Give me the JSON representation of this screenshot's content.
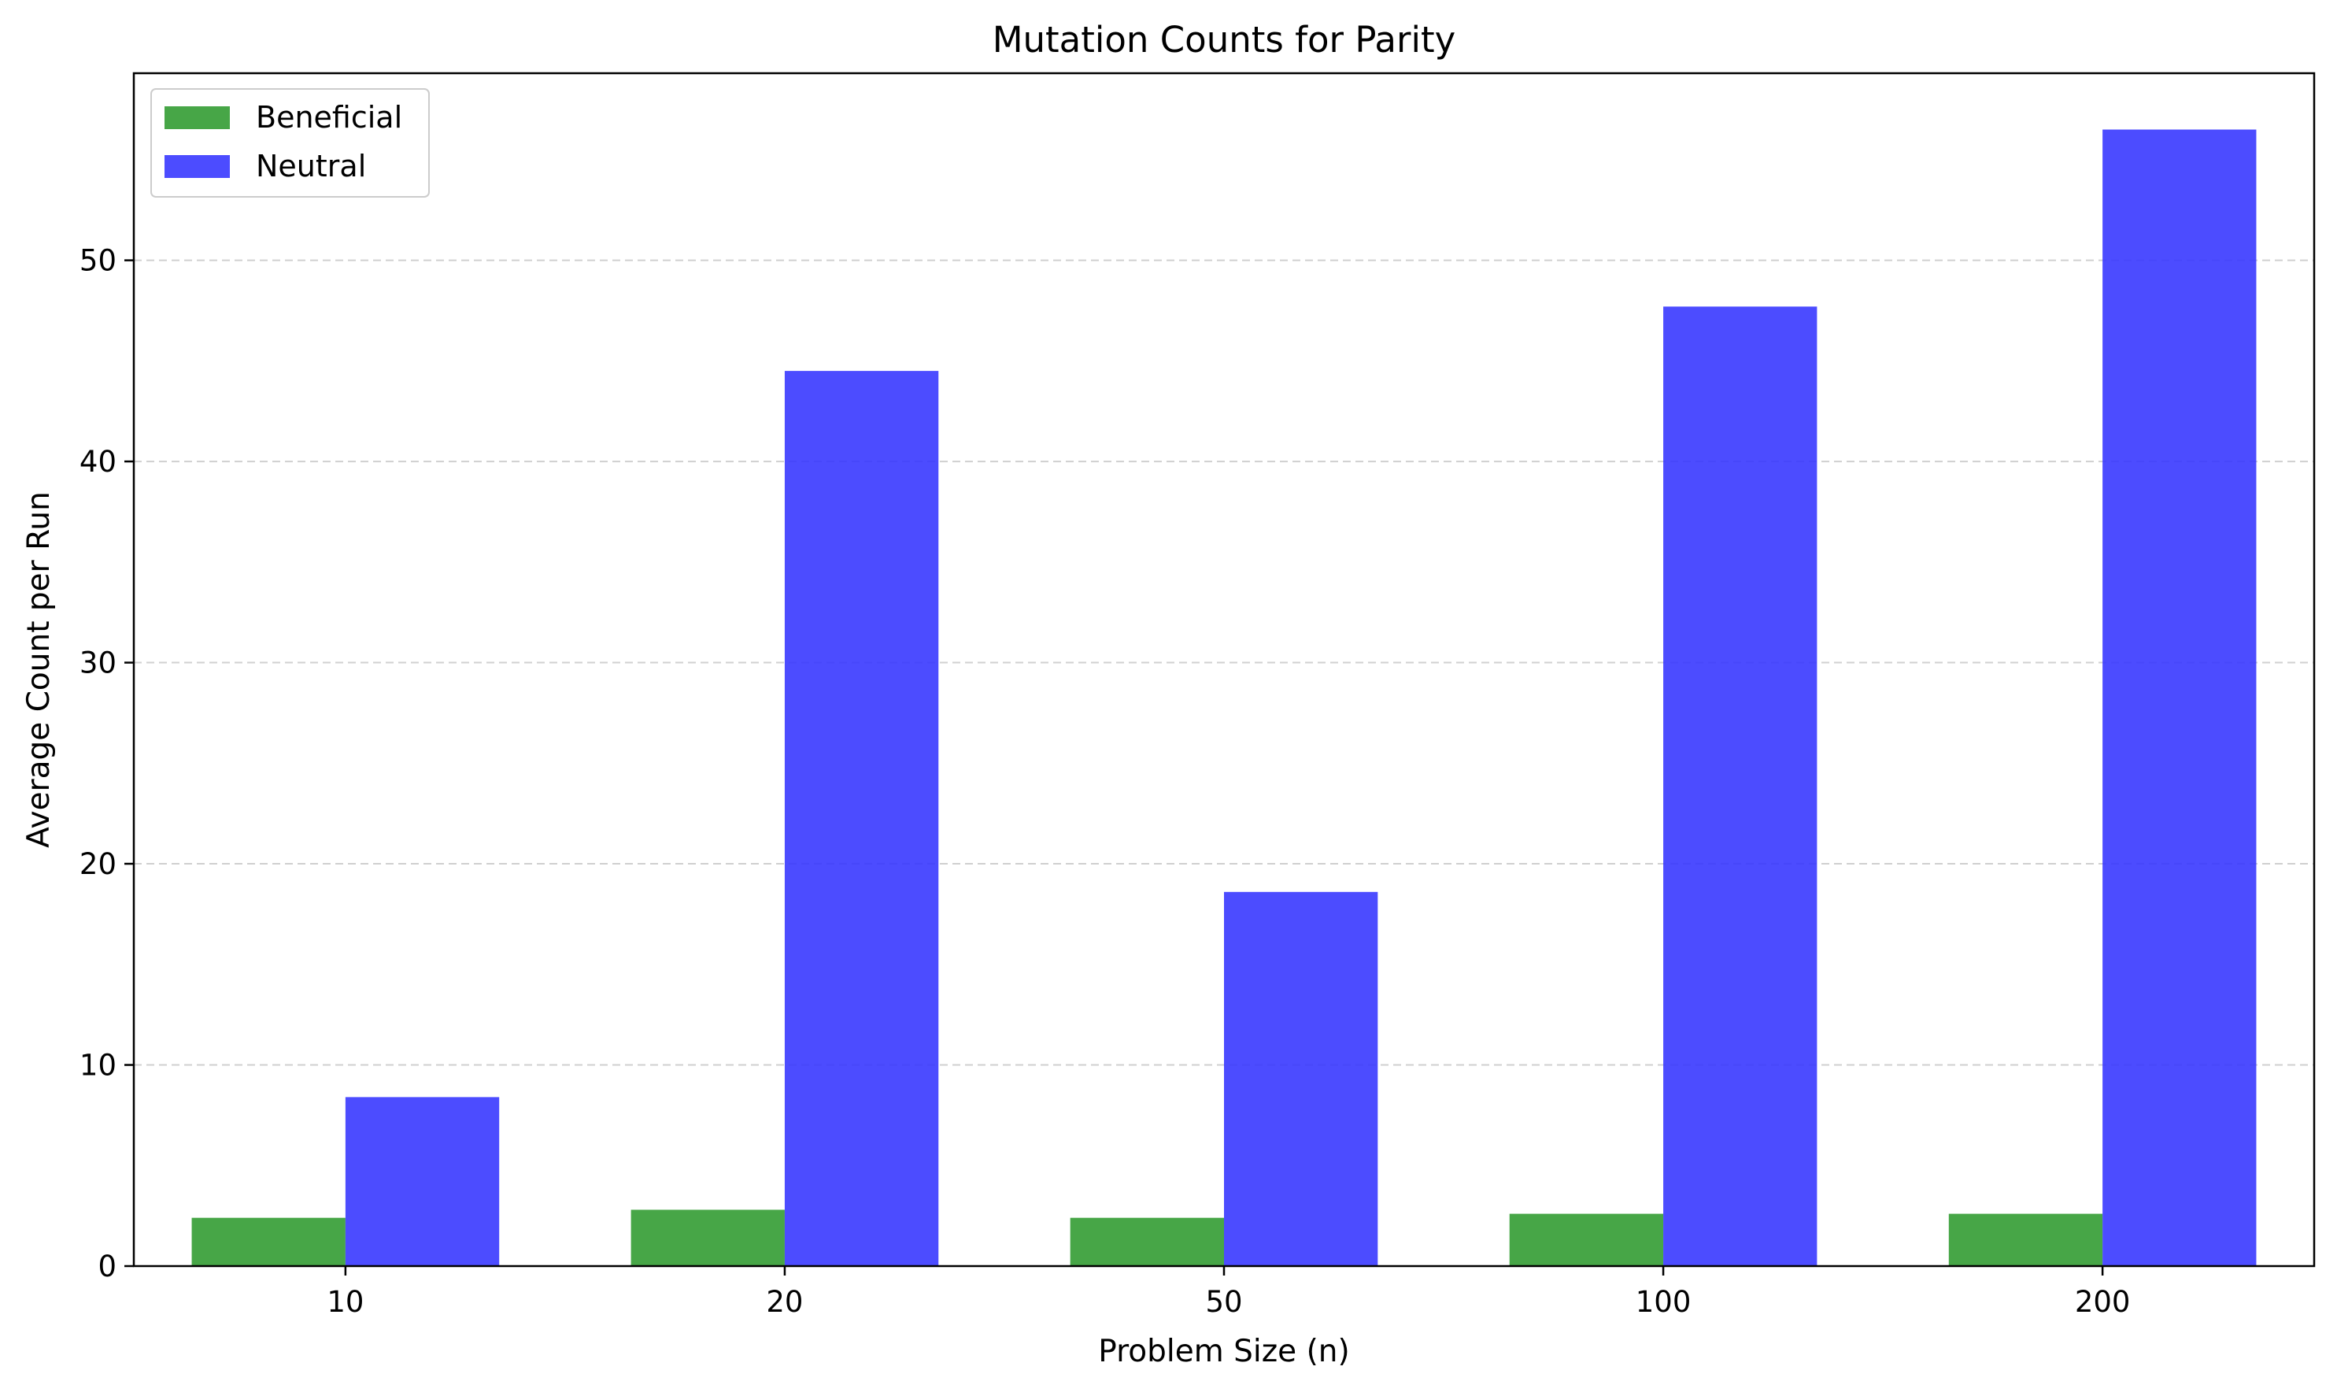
{
  "chart_data": {
    "type": "bar",
    "title": "Mutation Counts for Parity",
    "xlabel": "Problem Size (n)",
    "ylabel": "Average Count per Run",
    "categories": [
      "10",
      "20",
      "50",
      "100",
      "200"
    ],
    "series": [
      {
        "name": "Beneficial",
        "values": [
          2.4,
          2.8,
          2.4,
          2.6,
          2.6
        ],
        "color": "#2e9a2e"
      },
      {
        "name": "Neutral",
        "values": [
          8.4,
          44.5,
          18.6,
          47.7,
          56.5
        ],
        "color": "#3333ff"
      }
    ],
    "ylim": [
      0,
      59.3
    ],
    "yticks": [
      0,
      10,
      20,
      30,
      40,
      50
    ],
    "grid": "horizontal dashed",
    "legend": "top-left"
  }
}
